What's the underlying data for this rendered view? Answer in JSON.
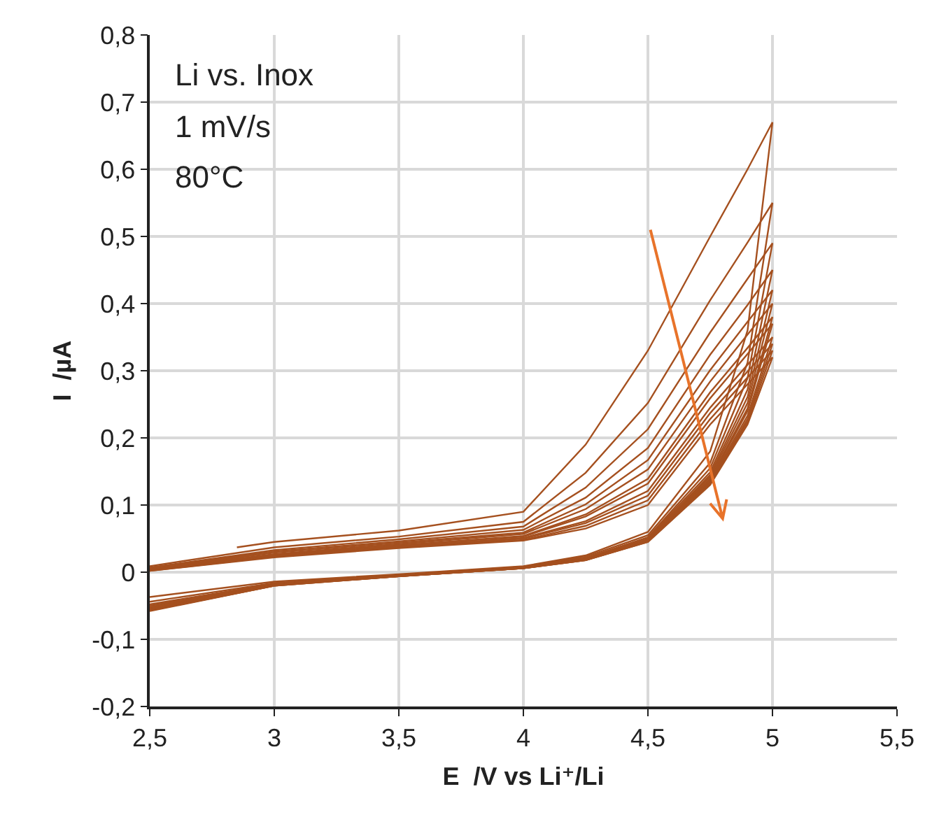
{
  "chart_data": {
    "type": "line",
    "xlabel": "E  /V vs Li⁺/Li",
    "ylabel": "I  /µA",
    "annotations": [
      "Li vs. Inox",
      "1 mV/s",
      "80°C"
    ],
    "xlim": [
      2.5,
      5.5
    ],
    "ylim": [
      -0.2,
      0.8
    ],
    "xticks": [
      {
        "value": 2.5,
        "label": "2,5"
      },
      3,
      {
        "value": 3.5,
        "label": "3,5"
      },
      4,
      {
        "value": 4.5,
        "label": "4,5"
      },
      5,
      {
        "value": 5.5,
        "label": "5,5"
      }
    ],
    "yticks": [
      {
        "value": -0.2,
        "label": "-0,2"
      },
      {
        "value": -0.1,
        "label": "-0,1"
      },
      0,
      {
        "value": 0.1,
        "label": "0,1"
      },
      {
        "value": 0.2,
        "label": "0,2"
      },
      {
        "value": 0.3,
        "label": "0,3"
      },
      {
        "value": 0.4,
        "label": "0,4"
      },
      {
        "value": 0.5,
        "label": "0,5"
      },
      {
        "value": 0.6,
        "label": "0,6"
      },
      {
        "value": 0.7,
        "label": "0,7"
      },
      {
        "value": 0.8,
        "label": "0,8"
      }
    ],
    "grid": true,
    "marker": "none",
    "line_style": "solid",
    "series": [
      {
        "color": "#a5501f",
        "x": [
          2.85,
          3,
          3.5,
          4,
          4.25,
          4.5,
          4.75,
          4.9,
          5,
          4.9,
          4.75,
          4.5,
          4.25,
          4,
          3.5,
          3,
          2.5
        ],
        "values": [
          0.037,
          0.045,
          0.062,
          0.09,
          0.19,
          0.33,
          0.5,
          0.6,
          0.67,
          0.36,
          0.18,
          0.06,
          0.025,
          0.009,
          -0.003,
          -0.014,
          -0.037
        ]
      },
      {
        "color": "#a5501f",
        "x": [
          2.5,
          3,
          3.5,
          4,
          4.25,
          4.5,
          4.75,
          4.9,
          5,
          4.9,
          4.75,
          4.5,
          4.25,
          4,
          3.5,
          3,
          2.5
        ],
        "values": [
          0.009,
          0.037,
          0.053,
          0.075,
          0.148,
          0.252,
          0.405,
          0.491,
          0.55,
          0.312,
          0.163,
          0.055,
          0.023,
          0.008,
          -0.004,
          -0.016,
          -0.044
        ]
      },
      {
        "color": "#a5501f",
        "x": [
          2.5,
          3,
          3.5,
          4,
          4.25,
          4.5,
          4.75,
          4.9,
          5,
          4.9,
          4.75,
          4.5,
          4.25,
          4,
          3.5,
          3,
          2.5
        ],
        "values": [
          0.007,
          0.033,
          0.049,
          0.068,
          0.126,
          0.213,
          0.357,
          0.437,
          0.49,
          0.289,
          0.155,
          0.052,
          0.021,
          0.007,
          -0.005,
          -0.017,
          -0.048
        ]
      },
      {
        "color": "#a5501f",
        "x": [
          2.5,
          3,
          3.5,
          4,
          4.25,
          4.5,
          4.75,
          4.9,
          5,
          4.9,
          4.75,
          4.5,
          4.25,
          4,
          3.5,
          3,
          2.5
        ],
        "values": [
          0.006,
          0.031,
          0.046,
          0.063,
          0.111,
          0.185,
          0.324,
          0.398,
          0.45,
          0.272,
          0.149,
          0.051,
          0.021,
          0.007,
          -0.005,
          -0.018,
          -0.05
        ]
      },
      {
        "color": "#a5501f",
        "x": [
          2.5,
          3,
          3.5,
          4,
          4.25,
          4.5,
          4.75,
          4.9,
          5,
          4.9,
          4.75,
          4.5,
          4.25,
          4,
          3.5,
          3,
          2.5
        ],
        "values": [
          0.005,
          0.029,
          0.044,
          0.059,
          0.101,
          0.167,
          0.301,
          0.373,
          0.42,
          0.261,
          0.145,
          0.049,
          0.02,
          0.007,
          -0.005,
          -0.018,
          -0.052
        ]
      },
      {
        "color": "#a5501f",
        "x": [
          2.5,
          3,
          3.5,
          4,
          4.25,
          4.5,
          4.75,
          4.9,
          5,
          4.9,
          4.75,
          4.5,
          4.25,
          4,
          3.5,
          3,
          2.5
        ],
        "values": [
          0.004,
          0.027,
          0.042,
          0.057,
          0.094,
          0.153,
          0.284,
          0.354,
          0.4,
          0.252,
          0.142,
          0.048,
          0.02,
          0.007,
          -0.005,
          -0.019,
          -0.053
        ]
      },
      {
        "color": "#a5501f",
        "x": [
          2.5,
          3,
          3.5,
          4,
          4.25,
          4.5,
          4.75,
          4.9,
          5,
          4.9,
          4.75,
          4.5,
          4.25,
          4,
          3.5,
          3,
          2.5
        ],
        "values": [
          0.004,
          0.026,
          0.04,
          0.054,
          0.086,
          0.139,
          0.268,
          0.334,
          0.38,
          0.244,
          0.139,
          0.048,
          0.019,
          0.007,
          -0.005,
          -0.019,
          -0.054
        ]
      },
      {
        "color": "#a5501f",
        "x": [
          2.5,
          3,
          3.5,
          4,
          4.25,
          4.5,
          4.75,
          4.9,
          5,
          4.9,
          4.75,
          4.5,
          4.25,
          4,
          3.5,
          3,
          2.5
        ],
        "values": [
          0.003,
          0.025,
          0.04,
          0.053,
          0.083,
          0.132,
          0.259,
          0.325,
          0.37,
          0.24,
          0.137,
          0.047,
          0.019,
          0.006,
          -0.006,
          -0.019,
          -0.055
        ]
      },
      {
        "color": "#a5501f",
        "x": [
          2.5,
          3,
          3.5,
          4,
          4.25,
          4.5,
          4.75,
          4.9,
          5,
          4.9,
          4.75,
          4.5,
          4.25,
          4,
          3.5,
          3,
          2.5
        ],
        "values": [
          0.003,
          0.024,
          0.038,
          0.051,
          0.076,
          0.121,
          0.245,
          0.309,
          0.35,
          0.233,
          0.135,
          0.046,
          0.019,
          0.006,
          -0.006,
          -0.019,
          -0.056
        ]
      },
      {
        "color": "#a5501f",
        "x": [
          2.5,
          3,
          3.5,
          4,
          4.25,
          4.5,
          4.75,
          4.9,
          5,
          4.9,
          4.75,
          4.5,
          4.25,
          4,
          3.5,
          3,
          2.5
        ],
        "values": [
          0.003,
          0.023,
          0.038,
          0.05,
          0.073,
          0.114,
          0.237,
          0.299,
          0.34,
          0.228,
          0.133,
          0.046,
          0.018,
          0.006,
          -0.006,
          -0.02,
          -0.057
        ]
      },
      {
        "color": "#a5501f",
        "x": [
          2.5,
          3,
          3.5,
          4,
          4.25,
          4.5,
          4.75,
          4.9,
          5,
          4.9,
          4.75,
          4.5,
          4.25,
          4,
          3.5,
          3,
          2.5
        ],
        "values": [
          0.002,
          0.023,
          0.037,
          0.048,
          0.069,
          0.107,
          0.228,
          0.29,
          0.33,
          0.224,
          0.132,
          0.045,
          0.018,
          0.006,
          -0.006,
          -0.02,
          -0.057
        ]
      },
      {
        "color": "#a5501f",
        "x": [
          2.5,
          3,
          3.5,
          4,
          4.25,
          4.5,
          4.75,
          4.9,
          5,
          4.9,
          4.75,
          4.5,
          4.25,
          4,
          3.5,
          3,
          2.5
        ],
        "values": [
          0.002,
          0.022,
          0.036,
          0.047,
          0.065,
          0.1,
          0.22,
          0.28,
          0.32,
          0.22,
          0.13,
          0.045,
          0.018,
          0.006,
          -0.006,
          -0.02,
          -0.058
        ]
      }
    ]
  }
}
